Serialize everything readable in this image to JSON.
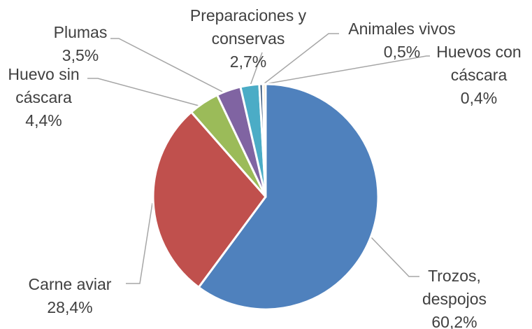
{
  "chart_data": {
    "type": "pie",
    "categories": [
      "Trozos, despojos",
      "Carne aviar",
      "Huevo sin cáscara",
      "Plumas",
      "Preparaciones y conservas",
      "Animales vivos",
      "Huevos con cáscara"
    ],
    "values": [
      60.2,
      28.4,
      4.4,
      3.5,
      2.7,
      0.5,
      0.4
    ],
    "value_labels": [
      "60,2%",
      "28,4%",
      "4,4%",
      "3,5%",
      "2,7%",
      "0,5%",
      "0,4%"
    ],
    "colors": [
      "#4f81bd",
      "#c0504d",
      "#9bbb59",
      "#8064a2",
      "#4bacc6",
      "#2c4d75",
      "#f5deb3"
    ]
  }
}
